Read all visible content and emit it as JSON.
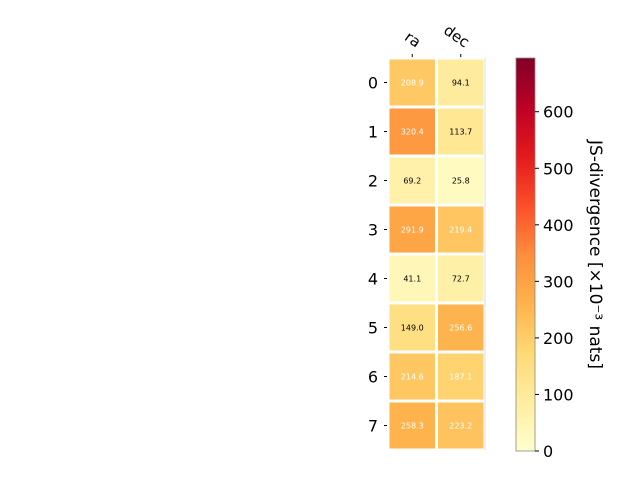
{
  "chart_data": {
    "type": "heatmap",
    "columns": [
      "ra",
      "dec"
    ],
    "rows": [
      "0",
      "1",
      "2",
      "3",
      "4",
      "5",
      "6",
      "7"
    ],
    "values": [
      [
        208.9,
        94.1
      ],
      [
        320.4,
        113.7
      ],
      [
        69.2,
        25.8
      ],
      [
        291.9,
        219.4
      ],
      [
        41.1,
        72.7
      ],
      [
        149.0,
        256.6
      ],
      [
        214.6,
        187.1
      ],
      [
        258.3,
        223.2
      ]
    ],
    "cell_labels": [
      [
        "208.9",
        "94.1"
      ],
      [
        "320.4",
        "113.7"
      ],
      [
        "69.2",
        "25.8"
      ],
      [
        "291.9",
        "219.4"
      ],
      [
        "41.1",
        "72.7"
      ],
      [
        "149.0",
        "256.6"
      ],
      [
        "214.6",
        "187.1"
      ],
      [
        "258.3",
        "223.2"
      ]
    ],
    "colorbar": {
      "label": "JS-divergence [×10⁻³ nats]",
      "ticks": [
        "0",
        "100",
        "200",
        "300",
        "400",
        "500",
        "600"
      ],
      "tick_values": [
        0,
        100,
        200,
        300,
        400,
        500,
        600
      ],
      "vmin": 0,
      "vmax": 695,
      "colormap": "YlOrRd",
      "colormap_stops": [
        "#ffffcc",
        "#ffeda0",
        "#fed976",
        "#feb24c",
        "#fd8d3c",
        "#fc4e2a",
        "#e31a1c",
        "#bd0026",
        "#800026"
      ]
    },
    "grid": false,
    "legend": "colorbar-right"
  }
}
